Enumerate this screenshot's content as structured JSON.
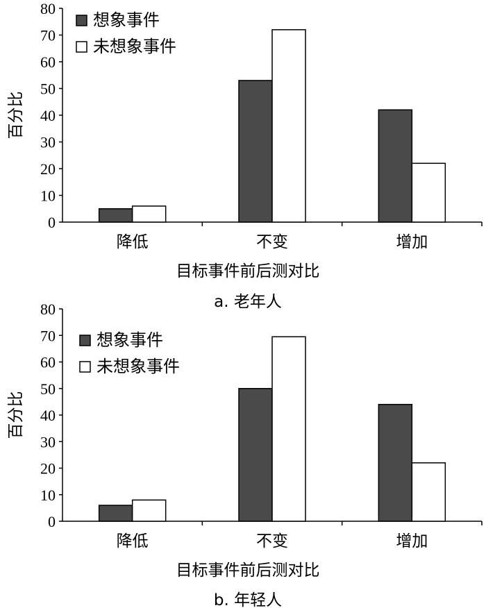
{
  "chart_data": [
    {
      "type": "bar",
      "caption": "a. 老年人",
      "xlabel": "目标事件前后测对比",
      "ylabel": "百分比",
      "ylim": [
        0,
        80
      ],
      "yticks": [
        0,
        10,
        20,
        30,
        40,
        50,
        60,
        70,
        80
      ],
      "categories": [
        "降低",
        "不变",
        "增加"
      ],
      "legend_position": "top-left",
      "series": [
        {
          "name": "想象事件",
          "color": "#4a4a4a",
          "values": [
            5,
            53,
            42
          ]
        },
        {
          "name": "未想象事件",
          "color": "#ffffff",
          "values": [
            6,
            72,
            22
          ]
        }
      ]
    },
    {
      "type": "bar",
      "caption": "b. 年轻人",
      "xlabel": "目标事件前后测对比",
      "ylabel": "百分比",
      "ylim": [
        0,
        80
      ],
      "yticks": [
        0,
        10,
        20,
        30,
        40,
        50,
        60,
        70,
        80
      ],
      "categories": [
        "降低",
        "不变",
        "增加"
      ],
      "legend_position": "top-left",
      "series": [
        {
          "name": "想象事件",
          "color": "#4a4a4a",
          "values": [
            6,
            50,
            44
          ]
        },
        {
          "name": "未想象事件",
          "color": "#ffffff",
          "values": [
            8,
            69.5,
            22
          ]
        }
      ]
    }
  ]
}
